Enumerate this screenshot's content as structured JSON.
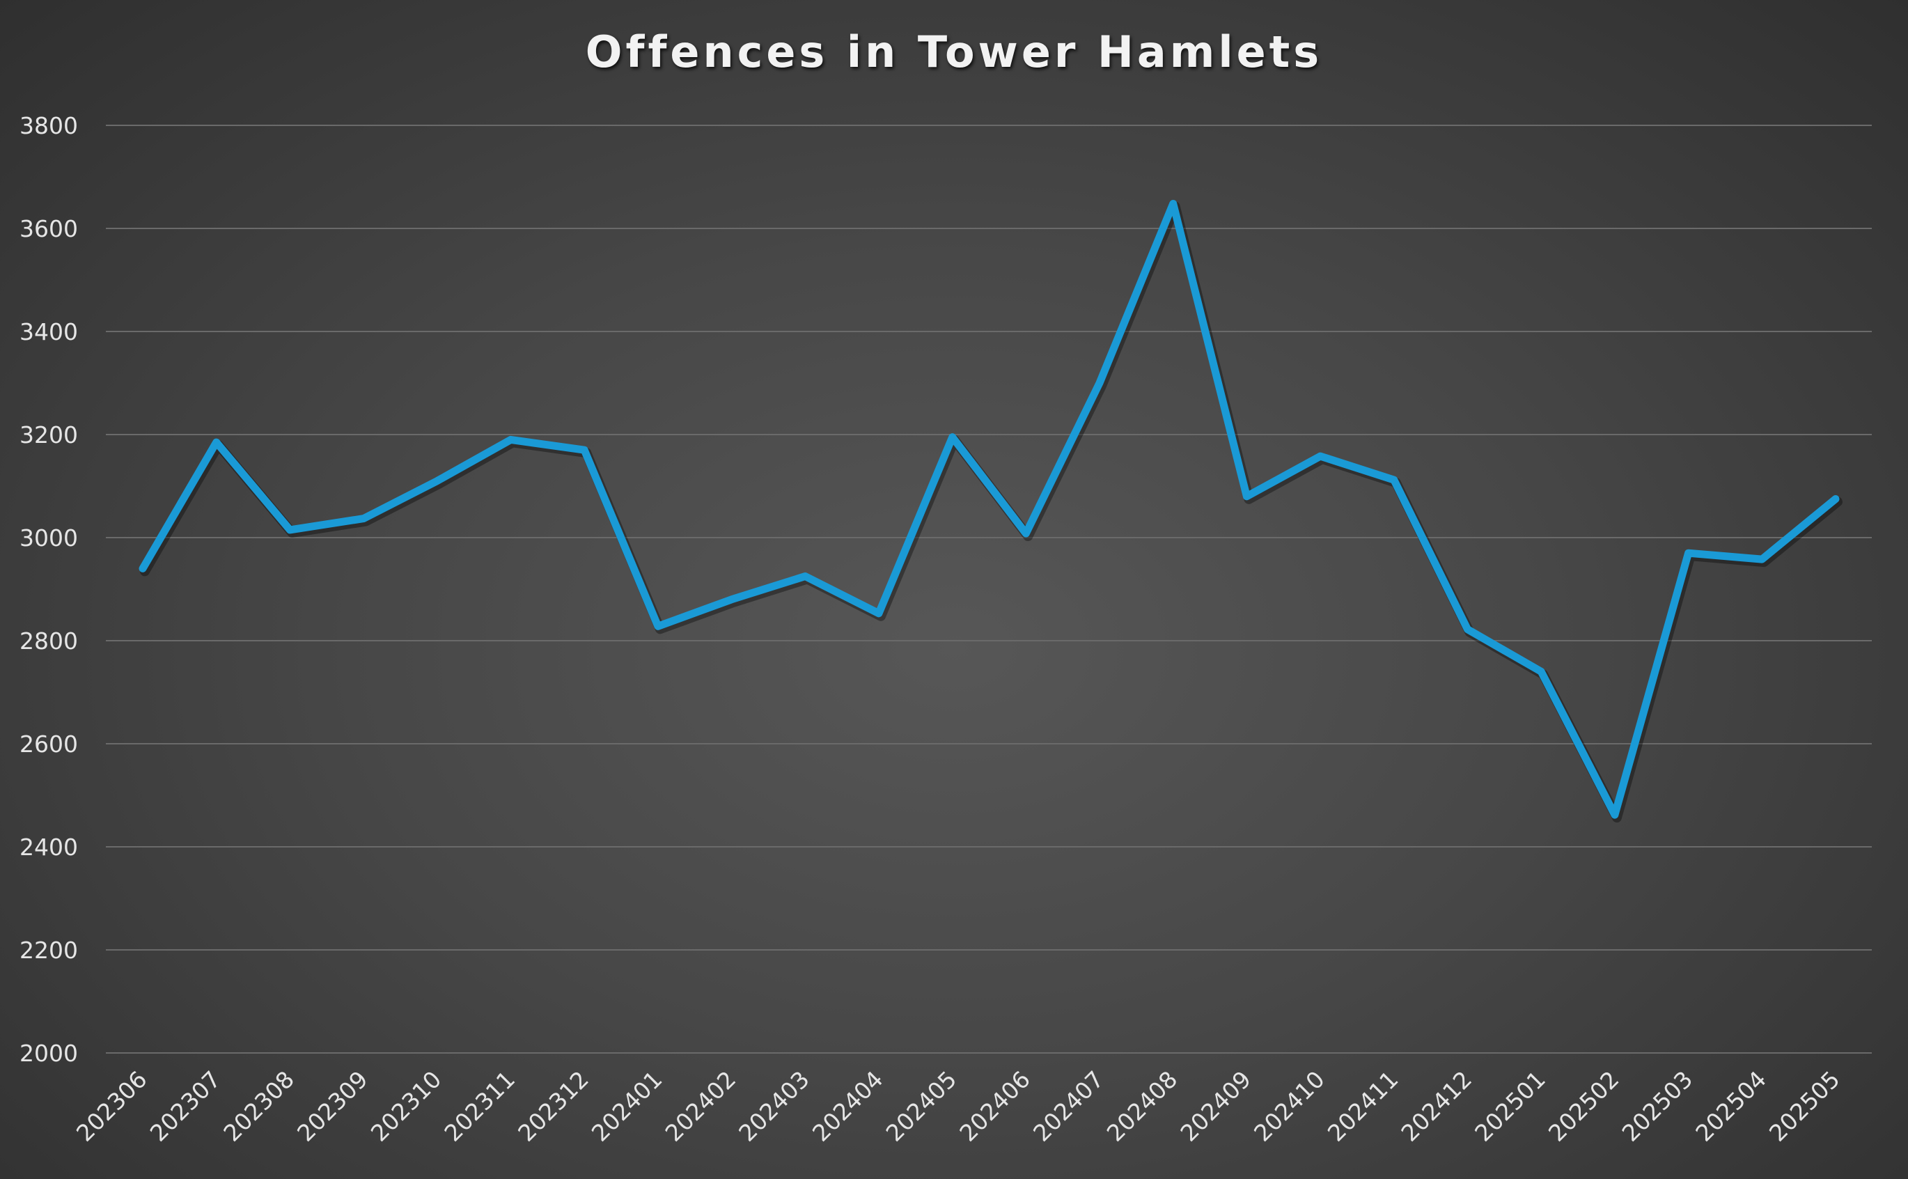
{
  "chart_data": {
    "type": "line",
    "title": "Offences in Tower Hamlets",
    "xlabel": "",
    "ylabel": "",
    "ylim": [
      2000,
      3800
    ],
    "yticks": [
      2000,
      2200,
      2400,
      2600,
      2800,
      3000,
      3200,
      3400,
      3600,
      3800
    ],
    "grid": true,
    "legend": "none",
    "categories": [
      "202306",
      "202307",
      "202308",
      "202309",
      "202310",
      "202311",
      "202312",
      "202401",
      "202402",
      "202403",
      "202404",
      "202405",
      "202406",
      "202407",
      "202408",
      "202409",
      "202410",
      "202411",
      "202412",
      "202501",
      "202502",
      "202503",
      "202504",
      "202505"
    ],
    "series": [
      {
        "color": "#1a9ad6",
        "values": [
          2940,
          3185,
          3015,
          3037,
          3110,
          3190,
          3170,
          2828,
          2880,
          2925,
          2853,
          3195,
          3008,
          3300,
          3648,
          3080,
          3158,
          3112,
          2822,
          2740,
          2462,
          2970,
          2958,
          3075
        ]
      }
    ]
  },
  "colors": {
    "grid": "#6a6a6a",
    "text": "#e6e6e6",
    "line": "#1a9ad6"
  }
}
